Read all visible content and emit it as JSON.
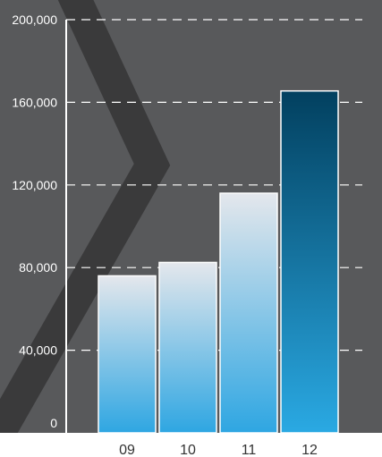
{
  "chart_data": {
    "type": "bar",
    "title": "",
    "xlabel": "",
    "ylabel": "",
    "categories": [
      "09",
      "10",
      "11",
      "12"
    ],
    "values": [
      76000,
      82500,
      116000,
      165500
    ],
    "ylim": [
      0,
      200000
    ],
    "yticks": [
      "0",
      "40,000",
      "80,000",
      "120,000",
      "160,000",
      "200,000"
    ],
    "ytick_values": [
      0,
      40000,
      80000,
      120000,
      160000,
      200000
    ],
    "grid": true,
    "legend": "none",
    "colors": {
      "panel": "#58595b",
      "chevron": "#3a3a3b",
      "grid": "#ffffff",
      "axis": "#ffffff",
      "bar_top": "#e4e7ec",
      "bar_bottom": "#2ea6e2",
      "highlight_top": "#02405f",
      "highlight_bottom": "#2aa9e3",
      "bar_border": "#ffffff"
    }
  }
}
